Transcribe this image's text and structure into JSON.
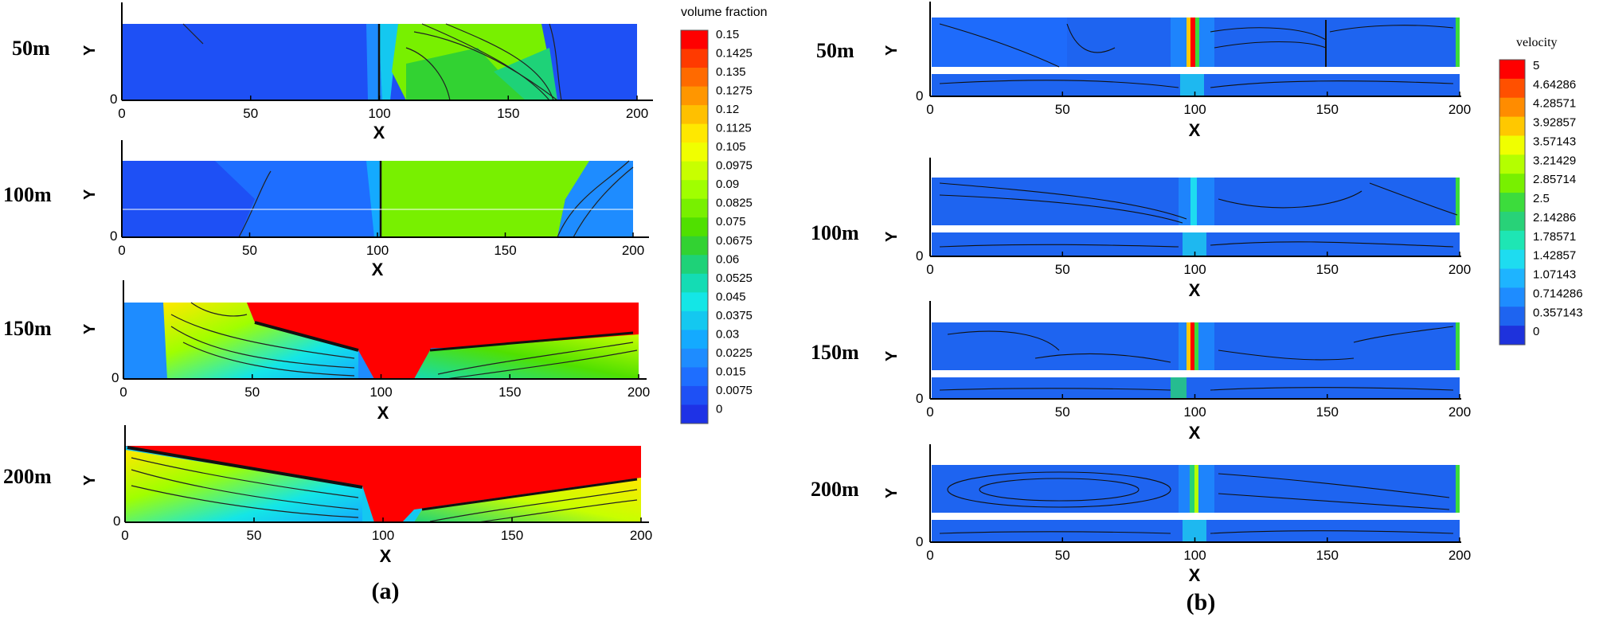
{
  "chart_data": [
    {
      "type": "contour",
      "panel_label": "(a)",
      "colorbar_title": "volume fraction",
      "colorbar_levels": [
        "0.15",
        "0.1425",
        "0.135",
        "0.1275",
        "0.12",
        "0.1125",
        "0.105",
        "0.0975",
        "0.09",
        "0.0825",
        "0.075",
        "0.0675",
        "0.06",
        "0.0525",
        "0.045",
        "0.0375",
        "0.03",
        "0.0225",
        "0.015",
        "0.0075",
        "0"
      ],
      "xlabel": "X",
      "ylabel": "Y",
      "xlim": [
        0,
        200
      ],
      "xticks": [
        "0",
        "50",
        "100",
        "150",
        "200"
      ],
      "yticks": [
        "0"
      ],
      "subplots": [
        {
          "label": "50m",
          "regions": [
            {
              "x0": 0,
              "x1": 95,
              "value": 0.0075
            },
            {
              "x0": 95,
              "x1": 105,
              "value": 0.0225
            },
            {
              "x0": 105,
              "x1": 150,
              "value": 0.0825
            },
            {
              "x0": 150,
              "x1": 195,
              "value": 0.0075
            }
          ]
        },
        {
          "label": "100m",
          "regions": [
            {
              "x0": 0,
              "x1": 95,
              "value": 0.0075
            },
            {
              "x0": 95,
              "x1": 170,
              "value": 0.0825
            },
            {
              "x0": 170,
              "x1": 200,
              "value": 0.015
            }
          ]
        },
        {
          "label": "150m",
          "regions": [
            {
              "x0": 0,
              "x1": 90,
              "value": 0.06
            },
            {
              "x0": 90,
              "x1": 110,
              "value": 0.15
            },
            {
              "x0": 110,
              "x1": 200,
              "value": 0.06
            }
          ]
        },
        {
          "label": "200m",
          "regions": [
            {
              "x0": 0,
              "x1": 92,
              "value": 0.045
            },
            {
              "x0": 92,
              "x1": 108,
              "value": 0.15
            },
            {
              "x0": 108,
              "x1": 200,
              "value": 0.1125
            }
          ]
        }
      ]
    },
    {
      "type": "contour",
      "panel_label": "(b)",
      "colorbar_title": "velocity",
      "colorbar_levels": [
        "5",
        "4.64286",
        "4.28571",
        "3.92857",
        "3.57143",
        "3.21429",
        "2.85714",
        "2.5",
        "2.14286",
        "1.78571",
        "1.42857",
        "1.07143",
        "0.714286",
        "0.357143",
        "0"
      ],
      "xlabel": "X",
      "ylabel": "Y",
      "xlim": [
        0,
        200
      ],
      "xticks": [
        "0",
        "50",
        "100",
        "150",
        "200"
      ],
      "yticks": [
        "0"
      ],
      "subplots": [
        {
          "label": "50m",
          "regions": [
            {
              "x0": 0,
              "x1": 98,
              "value": 0.357143
            },
            {
              "x0": 98,
              "x1": 102,
              "value": 5
            },
            {
              "x0": 102,
              "x1": 200,
              "value": 0.357143
            }
          ]
        },
        {
          "label": "100m",
          "regions": [
            {
              "x0": 0,
              "x1": 98,
              "value": 0.357143
            },
            {
              "x0": 98,
              "x1": 102,
              "value": 1.42857
            },
            {
              "x0": 102,
              "x1": 200,
              "value": 0.357143
            }
          ]
        },
        {
          "label": "150m",
          "regions": [
            {
              "x0": 0,
              "x1": 98,
              "value": 0.357143
            },
            {
              "x0": 98,
              "x1": 102,
              "value": 5
            },
            {
              "x0": 102,
              "x1": 200,
              "value": 0.357143
            }
          ]
        },
        {
          "label": "200m",
          "regions": [
            {
              "x0": 0,
              "x1": 98,
              "value": 0.357143
            },
            {
              "x0": 98,
              "x1": 102,
              "value": 1.78571
            },
            {
              "x0": 102,
              "x1": 200,
              "value": 0.357143
            }
          ]
        }
      ]
    }
  ],
  "colors": {
    "vf_scale": [
      "#ff0000",
      "#ff3a00",
      "#ff6a00",
      "#ff9600",
      "#ffc000",
      "#ffe800",
      "#f0ff00",
      "#c8ff00",
      "#a0ff00",
      "#78f000",
      "#50e000",
      "#32d232",
      "#1ed278",
      "#14dcb4",
      "#14e6e6",
      "#14c8f0",
      "#14aaff",
      "#1e8cff",
      "#1e6eff",
      "#1e50f5",
      "#1e32e6"
    ],
    "vel_scale": [
      "#ff0000",
      "#ff5000",
      "#ff8c00",
      "#ffc800",
      "#f0ff00",
      "#b4ff00",
      "#78f000",
      "#3cdc3c",
      "#28d278",
      "#1ee6b4",
      "#1edcf0",
      "#1eb4ff",
      "#1e8cff",
      "#1e64f0",
      "#1e32dc"
    ]
  }
}
